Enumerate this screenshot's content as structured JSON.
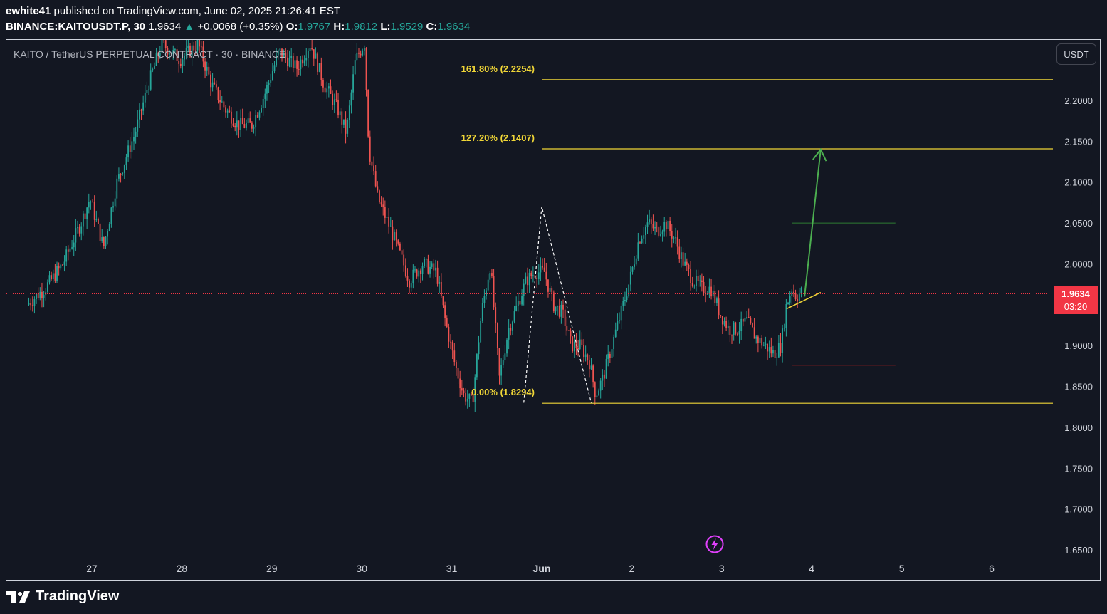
{
  "header": {
    "author": "ewhite41",
    "published_text": "published on TradingView.com, June 02, 2025 21:26:41 EST",
    "symbol_interval": "BINANCE:KAITOUSDT.P, 30",
    "last_price": "1.9634",
    "change": "+0.0068 (+0.35%)",
    "o_label": "O:",
    "o_value": "1.9767",
    "h_label": "H:",
    "h_value": "1.9812",
    "l_label": "L:",
    "l_value": "1.9529",
    "c_label": "C:",
    "c_value": "1.9634"
  },
  "legend_title": "KAITO / TetherUS PERPETUAL CONTRACT · 30 · BINANCE",
  "currency_button": "USDT",
  "price_tag": {
    "price": "1.9634",
    "countdown": "03:20"
  },
  "footer": {
    "brand": "TradingView"
  },
  "icons": {
    "logo": "tradingview-logo-icon",
    "bolt": "lightning-bolt-icon",
    "up_arrow": "up-triangle-icon"
  },
  "colors": {
    "background": "#131722",
    "up": "#26a69a",
    "down": "#ef5350",
    "fib": "#f0d637",
    "arrow": "#4caf50",
    "price_line": "#f23645"
  },
  "chart_data": {
    "type": "candlestick",
    "ylim": [
      1.62,
      2.29
    ],
    "y_ticks": [
      "2.2000",
      "2.1500",
      "2.1000",
      "2.0500",
      "2.0000",
      "1.9500",
      "1.9000",
      "1.8500",
      "1.8000",
      "1.7500",
      "1.7000",
      "1.6500"
    ],
    "x_ticks": [
      "27",
      "28",
      "29",
      "30",
      "31",
      "Jun",
      "2",
      "3",
      "4",
      "5",
      "6"
    ],
    "current_price": 1.9634,
    "fib_levels": [
      {
        "label": "161.80% (2.2254)",
        "value": 2.2254
      },
      {
        "label": "127.20% (2.1407)",
        "value": 2.1407
      },
      {
        "label": "0.00% (1.8294)",
        "value": 1.8294
      }
    ],
    "target_line": 2.05,
    "stop_line": 1.876,
    "price_path": [
      [
        26.3,
        1.95
      ],
      [
        26.5,
        1.97
      ],
      [
        26.7,
        2.0
      ],
      [
        26.9,
        2.05
      ],
      [
        27.0,
        2.08
      ],
      [
        27.15,
        2.02
      ],
      [
        27.3,
        2.1
      ],
      [
        27.5,
        2.16
      ],
      [
        27.65,
        2.22
      ],
      [
        27.8,
        2.27
      ],
      [
        28.0,
        2.25
      ],
      [
        28.2,
        2.27
      ],
      [
        28.35,
        2.22
      ],
      [
        28.5,
        2.19
      ],
      [
        28.65,
        2.17
      ],
      [
        28.8,
        2.17
      ],
      [
        28.95,
        2.21
      ],
      [
        29.1,
        2.26
      ],
      [
        29.3,
        2.24
      ],
      [
        29.45,
        2.27
      ],
      [
        29.6,
        2.22
      ],
      [
        29.75,
        2.19
      ],
      [
        29.85,
        2.16
      ],
      [
        29.95,
        2.25
      ],
      [
        30.05,
        2.27
      ],
      [
        30.1,
        2.14
      ],
      [
        30.2,
        2.08
      ],
      [
        30.35,
        2.04
      ],
      [
        30.55,
        1.98
      ],
      [
        30.7,
        2.0
      ],
      [
        30.85,
        1.99
      ],
      [
        30.95,
        1.93
      ],
      [
        31.05,
        1.88
      ],
      [
        31.15,
        1.84
      ],
      [
        31.25,
        1.83
      ],
      [
        31.35,
        1.94
      ],
      [
        31.45,
        2.0
      ],
      [
        31.55,
        1.86
      ],
      [
        31.65,
        1.92
      ],
      [
        31.75,
        1.95
      ],
      [
        31.85,
        1.98
      ],
      [
        31.95,
        1.99
      ],
      [
        32.05,
        1.99
      ],
      [
        32.15,
        1.95
      ],
      [
        32.25,
        1.94
      ],
      [
        32.35,
        1.9
      ],
      [
        32.45,
        1.9
      ],
      [
        32.55,
        1.88
      ],
      [
        32.62,
        1.84
      ],
      [
        32.7,
        1.86
      ],
      [
        32.8,
        1.9
      ],
      [
        32.9,
        1.94
      ],
      [
        33.0,
        1.98
      ],
      [
        33.1,
        2.03
      ],
      [
        33.2,
        2.05
      ],
      [
        33.3,
        2.04
      ],
      [
        33.4,
        2.05
      ],
      [
        33.5,
        2.03
      ],
      [
        33.6,
        2.0
      ],
      [
        33.7,
        1.98
      ],
      [
        33.8,
        1.97
      ],
      [
        33.9,
        1.97
      ],
      [
        34.0,
        1.94
      ],
      [
        34.1,
        1.92
      ],
      [
        34.2,
        1.92
      ],
      [
        34.3,
        1.93
      ],
      [
        34.4,
        1.91
      ],
      [
        34.5,
        1.9
      ],
      [
        34.6,
        1.89
      ],
      [
        34.68,
        1.9
      ],
      [
        34.74,
        1.95
      ],
      [
        34.8,
        1.97
      ],
      [
        34.85,
        1.96
      ],
      [
        34.9,
        1.965
      ]
    ],
    "annotations": {
      "dashed_path": [
        [
          31.8,
          1.83
        ],
        [
          32.0,
          2.07
        ],
        [
          32.55,
          1.83
        ]
      ],
      "green_arrow": {
        "from": [
          34.92,
          1.96
        ],
        "to": [
          35.1,
          2.14
        ]
      },
      "yellow_segment": {
        "from": [
          34.72,
          1.945
        ],
        "to": [
          35.1,
          1.965
        ]
      }
    }
  }
}
